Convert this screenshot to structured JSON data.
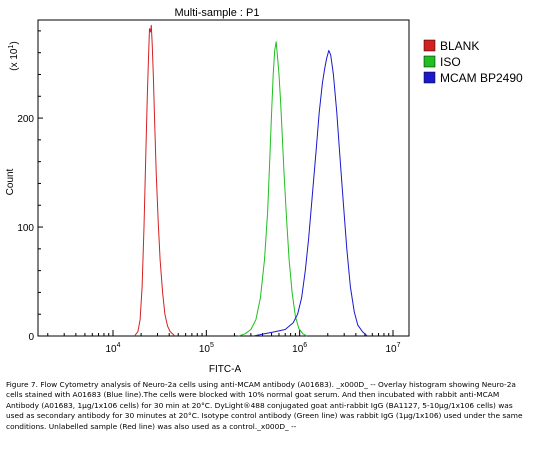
{
  "chart_data": {
    "type": "line",
    "title": "Multi-sample : P1",
    "xlabel": "FITC-A",
    "ylabel": "Count",
    "y_multiplier": "(x 10",
    "y_multiplier_exp": "1",
    "y_multiplier_close": ")",
    "xscale": "log",
    "xlim": [
      10000,
      10000000
    ],
    "ylim": [
      0,
      290
    ],
    "x_ticks": [
      {
        "value": 10000,
        "base": "10",
        "exp": "4"
      },
      {
        "value": 100000,
        "base": "10",
        "exp": "5"
      },
      {
        "value": 1000000,
        "base": "10",
        "exp": "6"
      },
      {
        "value": 10000000,
        "base": "10",
        "exp": "7"
      }
    ],
    "y_ticks": [
      {
        "value": 0,
        "label": "0"
      },
      {
        "value": 100,
        "label": "100"
      },
      {
        "value": 200,
        "label": "200"
      }
    ],
    "legend_position": "right",
    "series": [
      {
        "name": "BLANK",
        "color": "#d42020",
        "points": [
          [
            17000,
            0
          ],
          [
            18500,
            4
          ],
          [
            19500,
            15
          ],
          [
            20500,
            45
          ],
          [
            21500,
            100
          ],
          [
            22500,
            170
          ],
          [
            23300,
            220
          ],
          [
            24000,
            255
          ],
          [
            24600,
            282
          ],
          [
            25200,
            279
          ],
          [
            25700,
            285
          ],
          [
            26300,
            268
          ],
          [
            27000,
            240
          ],
          [
            28000,
            195
          ],
          [
            29000,
            150
          ],
          [
            30500,
            105
          ],
          [
            32000,
            70
          ],
          [
            34000,
            40
          ],
          [
            36000,
            20
          ],
          [
            38500,
            9
          ],
          [
            41000,
            4
          ],
          [
            46000,
            0
          ]
        ]
      },
      {
        "name": "ISO",
        "color": "#1fbf1f",
        "points": [
          [
            220000,
            0
          ],
          [
            260000,
            2
          ],
          [
            300000,
            6
          ],
          [
            340000,
            15
          ],
          [
            380000,
            35
          ],
          [
            420000,
            70
          ],
          [
            455000,
            115
          ],
          [
            480000,
            165
          ],
          [
            500000,
            205
          ],
          [
            520000,
            240
          ],
          [
            540000,
            262
          ],
          [
            560000,
            270
          ],
          [
            580000,
            255
          ],
          [
            600000,
            240
          ],
          [
            625000,
            215
          ],
          [
            650000,
            185
          ],
          [
            680000,
            150
          ],
          [
            720000,
            110
          ],
          [
            770000,
            70
          ],
          [
            830000,
            40
          ],
          [
            900000,
            18
          ],
          [
            980000,
            7
          ],
          [
            1080000,
            2
          ],
          [
            1200000,
            0
          ]
        ]
      },
      {
        "name": "MCAM BP2490",
        "color": "#1a1acc",
        "points": [
          [
            320000,
            0
          ],
          [
            420000,
            2
          ],
          [
            550000,
            4
          ],
          [
            700000,
            6
          ],
          [
            850000,
            12
          ],
          [
            950000,
            20
          ],
          [
            1050000,
            35
          ],
          [
            1150000,
            60
          ],
          [
            1250000,
            90
          ],
          [
            1370000,
            130
          ],
          [
            1500000,
            170
          ],
          [
            1620000,
            205
          ],
          [
            1750000,
            232
          ],
          [
            1850000,
            245
          ],
          [
            1950000,
            255
          ],
          [
            2050000,
            262
          ],
          [
            2150000,
            258
          ],
          [
            2300000,
            240
          ],
          [
            2500000,
            205
          ],
          [
            2700000,
            165
          ],
          [
            2950000,
            120
          ],
          [
            3200000,
            80
          ],
          [
            3500000,
            45
          ],
          [
            3850000,
            22
          ],
          [
            4200000,
            10
          ],
          [
            4700000,
            4
          ],
          [
            5300000,
            0
          ]
        ]
      }
    ]
  },
  "caption": "Figure 7. Flow Cytometry analysis of Neuro-2a cells using anti-MCAM antibody (A01683). _x000D_ -- Overlay histogram showing Neuro-2a cells stained with A01683 (Blue line).The cells were blocked with 10% normal goat serum. And then incubated with rabbit anti-MCAM Antibody (A01683, 1μg/1x106 cells) for 30 min at 20°C. DyLight®488 conjugated goat anti-rabbit IgG (BA1127, 5-10μg/1x106 cells) was used as secondary antibody for 30 minutes at 20°C. Isotype control antibody (Green line) was rabbit IgG (1μg/1x106) used under the same conditions. Unlabelled sample (Red line) was also used as a control._x000D_ --"
}
